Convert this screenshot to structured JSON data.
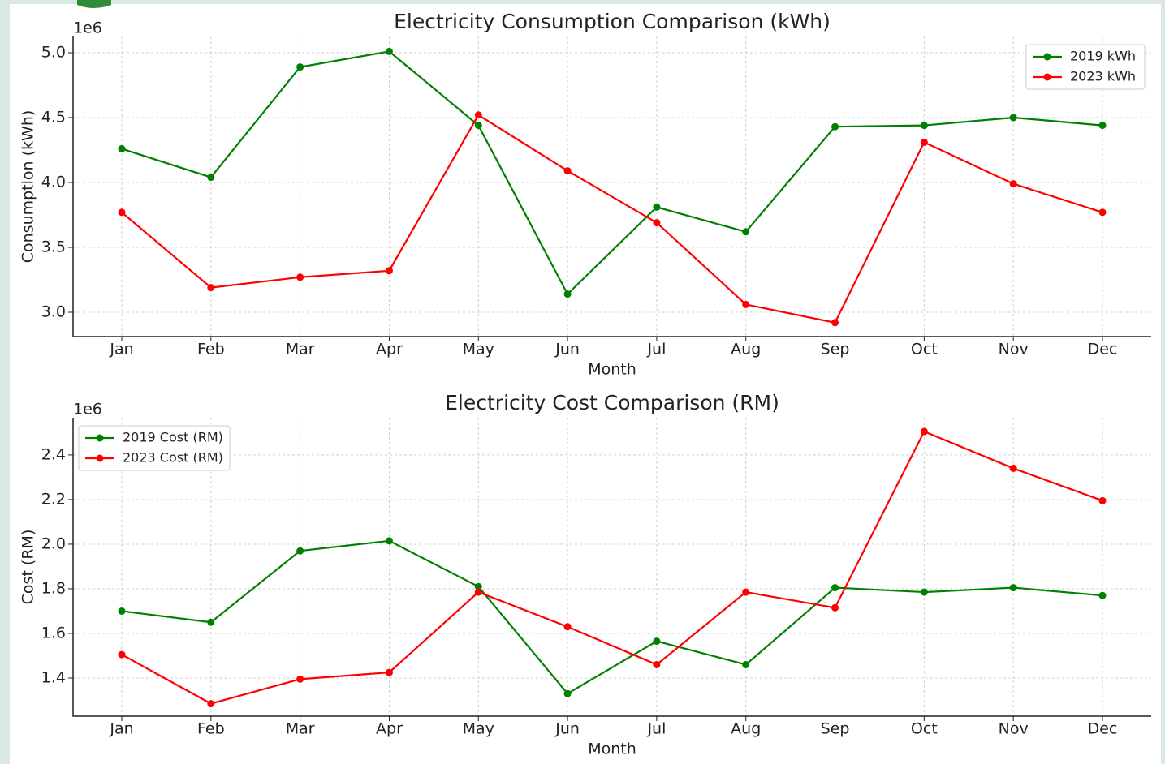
{
  "chart_data": [
    {
      "type": "line",
      "title": "Electricity Consumption Comparison (kWh)",
      "x_label": "Month",
      "y_label": "Consumption (kWh)",
      "y_multiplier": "1e6",
      "categories": [
        "Jan",
        "Feb",
        "Mar",
        "Apr",
        "May",
        "Jun",
        "Jul",
        "Aug",
        "Sep",
        "Oct",
        "Nov",
        "Dec"
      ],
      "series": [
        {
          "name": "2019 kWh",
          "color": "#008000",
          "values": [
            4260000,
            4040000,
            4890000,
            5010000,
            4440000,
            3140000,
            3810000,
            3620000,
            4430000,
            4440000,
            4500000,
            4440000
          ]
        },
        {
          "name": "2023 kWh",
          "color": "#ff0000",
          "values": [
            3770000,
            3190000,
            3270000,
            3320000,
            4520000,
            4090000,
            3690000,
            3060000,
            2920000,
            4310000,
            3990000,
            3770000
          ]
        }
      ],
      "ylim": [
        2812500,
        5125000
      ],
      "yticks": [
        {
          "value": 3000000,
          "label": "3.0"
        },
        {
          "value": 3500000,
          "label": "3.5"
        },
        {
          "value": 4000000,
          "label": "4.0"
        },
        {
          "value": 4500000,
          "label": "4.5"
        },
        {
          "value": 5000000,
          "label": "5.0"
        }
      ],
      "grid": true,
      "legend": "upper right"
    },
    {
      "type": "line",
      "title": "Electricity Cost Comparison (RM)",
      "x_label": "Month",
      "y_label": "Cost (RM)",
      "y_multiplier": "1e6",
      "categories": [
        "Jan",
        "Feb",
        "Mar",
        "Apr",
        "May",
        "Jun",
        "Jul",
        "Aug",
        "Sep",
        "Oct",
        "Nov",
        "Dec"
      ],
      "series": [
        {
          "name": "2019 Cost (RM)",
          "color": "#008000",
          "values": [
            1700000,
            1650000,
            1970000,
            2015000,
            1810000,
            1330000,
            1565000,
            1460000,
            1805000,
            1785000,
            1805000,
            1770000
          ]
        },
        {
          "name": "2023 Cost (RM)",
          "color": "#ff0000",
          "values": [
            1505000,
            1285000,
            1395000,
            1425000,
            1785000,
            1630000,
            1460000,
            1785000,
            1715000,
            2505000,
            2340000,
            2195000
          ]
        }
      ],
      "ylim": [
        1229000,
        2567000
      ],
      "yticks": [
        {
          "value": 1400000,
          "label": "1.4"
        },
        {
          "value": 1600000,
          "label": "1.6"
        },
        {
          "value": 1800000,
          "label": "1.8"
        },
        {
          "value": 2000000,
          "label": "2.0"
        },
        {
          "value": 2200000,
          "label": "2.2"
        },
        {
          "value": 2400000,
          "label": "2.4"
        }
      ],
      "grid": true,
      "legend": "upper left"
    }
  ]
}
